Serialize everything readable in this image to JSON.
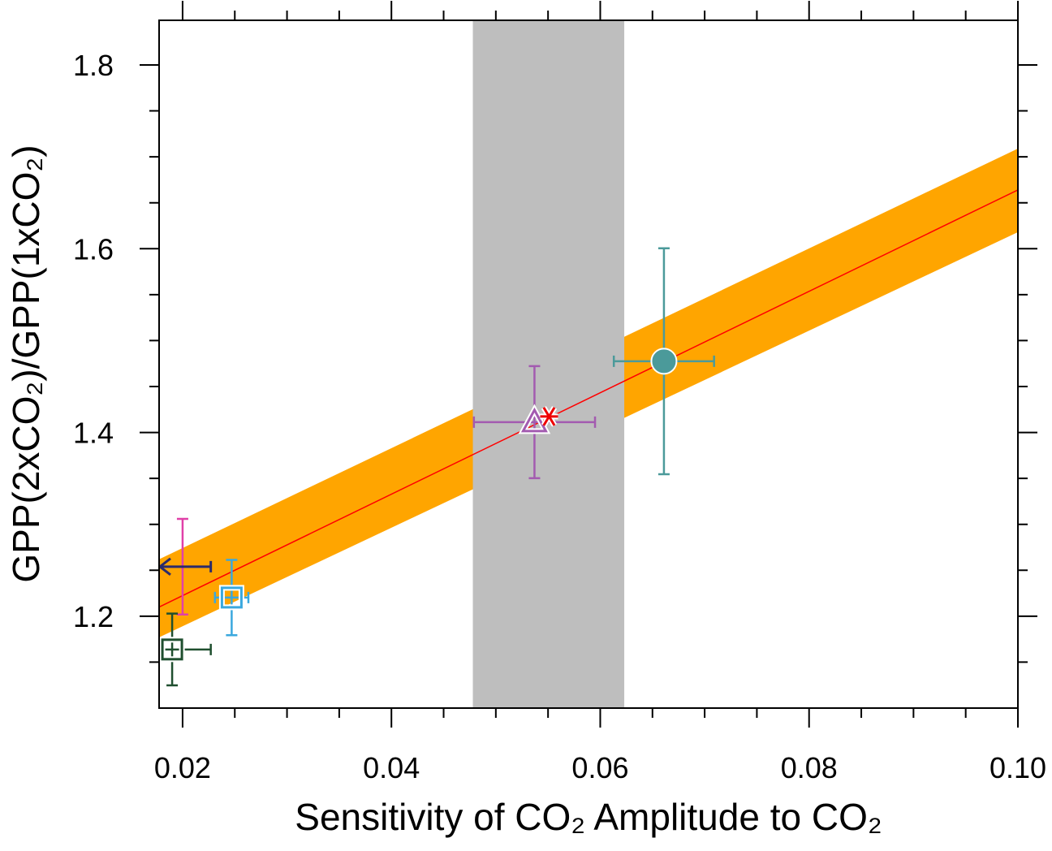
{
  "chart_data": {
    "type": "scatter",
    "xlabel": "Sensitivity of CO₂ Amplitude to CO₂",
    "ylabel": "GPP(2xCO₂)/GPP(1xCO₂)",
    "xlim": [
      0.01775,
      0.1
    ],
    "ylim": [
      1.1,
      1.8486
    ],
    "xticks": [
      0.02,
      0.04,
      0.06,
      0.08,
      {
        "value": 0.1,
        "label": "0.10"
      }
    ],
    "yticks": [
      1.2,
      1.4,
      1.6,
      1.8
    ],
    "xminorticks": [
      0.025,
      0.03,
      0.035,
      0.045,
      0.05,
      0.055,
      0.065,
      0.07,
      0.075,
      0.085,
      0.09,
      0.095
    ],
    "yminorticks": [
      1.15,
      1.25,
      1.3,
      1.35,
      1.45,
      1.5,
      1.55,
      1.65,
      1.7,
      1.75
    ],
    "obs_range": [
      0.0478,
      0.0623
    ],
    "obs_color": "#bebebe",
    "fit": {
      "x": [
        0.01775,
        0.1
      ],
      "y": [
        1.21,
        1.664
      ],
      "lower": [
        1.177,
        1.618
      ],
      "upper": [
        1.262,
        1.709
      ],
      "color": "#ff0000",
      "band_color": "#ffa500"
    },
    "points": [
      {
        "x": 0.0661,
        "y": 1.4775,
        "xerr": 0.0048,
        "yerr": 0.123,
        "color": "#4b9a9a",
        "marker": "circle"
      },
      {
        "x": 0.0537,
        "y": 1.4112,
        "xerr": 0.0058,
        "yerr": 0.061,
        "color": "#a35bb0",
        "marker": "triangle"
      },
      {
        "x": 0.0551,
        "y": 1.4174,
        "color": "#ee0000",
        "marker": "asterisk"
      },
      {
        "x": 0.02,
        "y": 1.2539,
        "yerr": 0.052,
        "color": "#e040a8",
        "marker": "none"
      },
      {
        "x_upper": 0.0227,
        "y": 1.2539,
        "color": "#2b2b6b",
        "marker": "arrow-left"
      },
      {
        "x": 0.0247,
        "y": 1.2203,
        "xerr": 0.0016,
        "yerr": 0.041,
        "color": "#3aa8de",
        "marker": "square"
      },
      {
        "x": 0.019,
        "y": 1.1638,
        "xerr": 0.0037,
        "yerr": 0.039,
        "color": "#1f4f2f",
        "marker": "square"
      }
    ]
  }
}
